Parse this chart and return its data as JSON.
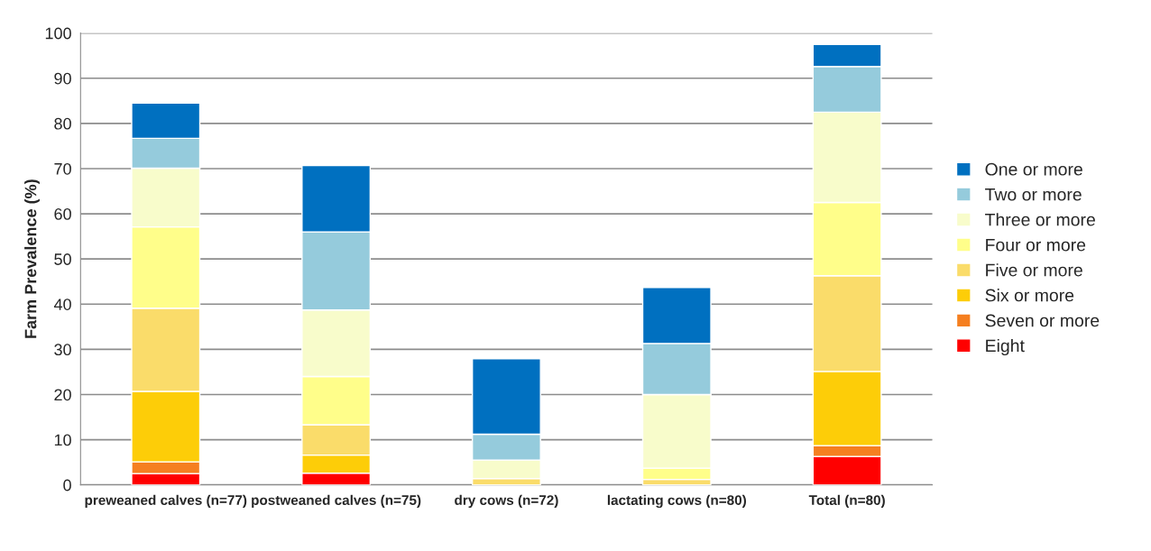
{
  "chart_data": {
    "type": "bar",
    "stacked": true,
    "ylabel": "Farm Prevalence (%)",
    "categories": [
      "preweaned calves (n=77)",
      "postweaned calves (n=75)",
      "dry cows (n=72)",
      "lactating cows (n=80)",
      "Total (n=80)"
    ],
    "series": [
      {
        "name": "Eight",
        "color": "#ff0000",
        "values": [
          2.5,
          2.6,
          0,
          0,
          6.3
        ]
      },
      {
        "name": "Seven or more",
        "color": "#f57f20",
        "values": [
          2.6,
          0,
          0,
          0,
          2.4
        ]
      },
      {
        "name": "Six or more",
        "color": "#fdcd08",
        "values": [
          15.6,
          4.0,
          0,
          0,
          16.4
        ]
      },
      {
        "name": "Five or more",
        "color": "#fadc6a",
        "values": [
          18.4,
          6.7,
          1.4,
          1.2,
          21.2
        ]
      },
      {
        "name": "Four or more",
        "color": "#fffe8a",
        "values": [
          18.0,
          10.7,
          0,
          2.5,
          16.2
        ]
      },
      {
        "name": "Three or more",
        "color": "#f8fccb",
        "values": [
          13.0,
          14.7,
          4.1,
          16.3,
          20.0
        ]
      },
      {
        "name": "Two or more",
        "color": "#95cbdc",
        "values": [
          6.6,
          17.3,
          5.7,
          11.3,
          10.1
        ]
      },
      {
        "name": "One or more",
        "color": "#0070c0",
        "values": [
          7.8,
          14.7,
          16.7,
          12.4,
          4.9
        ]
      }
    ],
    "ylim": [
      0,
      100
    ],
    "yticks": [
      0,
      10,
      20,
      30,
      40,
      50,
      60,
      70,
      80,
      90,
      100
    ],
    "grid": "y",
    "legend": "right"
  }
}
